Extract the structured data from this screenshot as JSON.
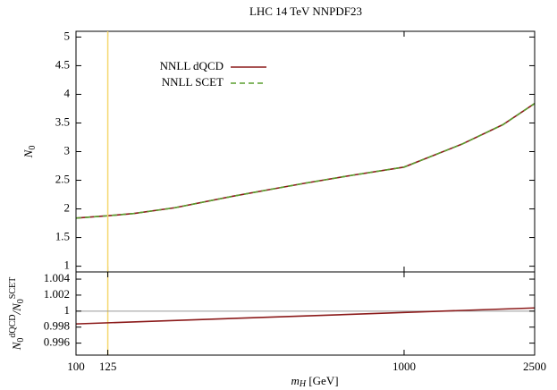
{
  "chart_data": [
    {
      "type": "line",
      "title": "LHC 14 TeV NNPDF23",
      "ylabel": [
        "N",
        "0"
      ],
      "x": [
        100,
        125,
        150,
        200,
        300,
        400,
        500,
        700,
        1000,
        1500,
        2000,
        2500
      ],
      "series": [
        {
          "name": "NNLL dQCD",
          "color": "#8b1a1a",
          "dash": false,
          "values": [
            1.84,
            1.88,
            1.92,
            2.02,
            2.22,
            2.35,
            2.45,
            2.59,
            2.73,
            3.13,
            3.47,
            3.84
          ]
        },
        {
          "name": "NNLL SCET",
          "color": "#5a9e2e",
          "dash": true,
          "values": [
            1.84,
            1.88,
            1.92,
            2.02,
            2.22,
            2.35,
            2.45,
            2.59,
            2.73,
            3.13,
            3.47,
            3.84
          ]
        }
      ],
      "xlim": [
        100,
        2500
      ],
      "xlog": true,
      "ylim": [
        0.9,
        5.1
      ],
      "yticks": [
        1,
        1.5,
        2,
        2.5,
        3,
        3.5,
        4,
        4.5,
        5
      ],
      "vline": 125,
      "vline_color": "#f5d76e",
      "legend": "upper-left"
    },
    {
      "type": "line",
      "ylabel": [
        "N",
        "0",
        "dQCD",
        "/N",
        "0",
        "SCET"
      ],
      "xlabel": [
        "m",
        "H",
        " [GeV]"
      ],
      "x": [
        100,
        2500
      ],
      "series": [
        {
          "color": "#8b1a1a",
          "values": [
            0.9984,
            1.0004
          ]
        }
      ],
      "xlim": [
        100,
        2500
      ],
      "xlog": true,
      "ylim": [
        0.9945,
        1.0049
      ],
      "xticks": [
        100,
        125,
        1000,
        2500
      ],
      "yticks": [
        0.996,
        0.998,
        1,
        1.002,
        1.004
      ],
      "hline": 1,
      "hline_color": "#999999"
    }
  ]
}
